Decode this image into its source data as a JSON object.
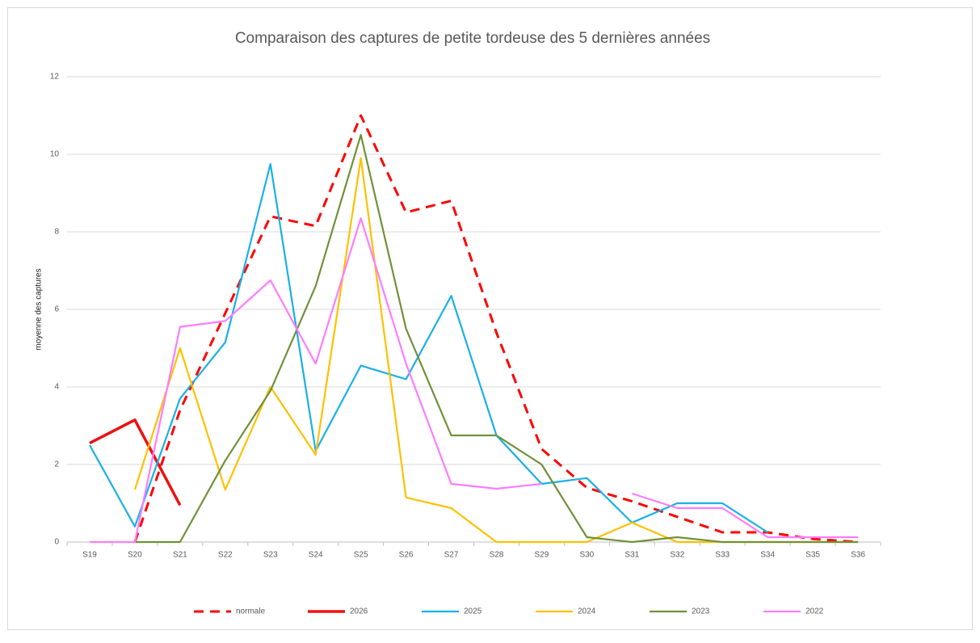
{
  "chart_data": {
    "type": "line",
    "title": "Comparaison des captures de petite tordeuse des 5 dernières années",
    "y_label": "moyenne des captures",
    "categories": [
      "S19",
      "S20",
      "S21",
      "S22",
      "S23",
      "S24",
      "S25",
      "S26",
      "S27",
      "S28",
      "S29",
      "S30",
      "S31",
      "S32",
      "S33",
      "S34",
      "S35",
      "S36"
    ],
    "ylim": [
      0,
      12
    ],
    "yticks": [
      0,
      2,
      4,
      6,
      8,
      10,
      12
    ],
    "grid": true,
    "legend": "bottom",
    "series": [
      {
        "name": "normale",
        "color": "#ff0000",
        "dashed": true,
        "values": [
          null,
          0,
          3.4,
          5.9,
          8.4,
          8.15,
          11,
          8.5,
          8.8,
          5.4,
          2.4,
          1.4,
          1.05,
          0.65,
          0.25,
          0.25,
          0.08,
          0
        ]
      },
      {
        "name": "2026",
        "color": "#ee1111",
        "dashed": false,
        "bold": true,
        "values": [
          2.55,
          3.15,
          0.95,
          null,
          null,
          null,
          null,
          null,
          null,
          null,
          null,
          null,
          null,
          null,
          null,
          null,
          null,
          null
        ]
      },
      {
        "name": "2025",
        "color": "#1ab0e8",
        "dashed": false,
        "values": [
          2.5,
          0.4,
          3.7,
          5.15,
          9.75,
          2.35,
          4.55,
          4.2,
          6.35,
          2.75,
          1.5,
          1.65,
          0.5,
          1,
          1,
          0.25,
          null,
          null
        ]
      },
      {
        "name": "2024",
        "color": "#ffc000",
        "dashed": false,
        "values": [
          null,
          1.35,
          5,
          1.35,
          4,
          2.25,
          9.9,
          1.15,
          0.875,
          0,
          0,
          0,
          0.5,
          0,
          0,
          0,
          0,
          0
        ]
      },
      {
        "name": "2023",
        "color": "#70913a",
        "dashed": false,
        "values": [
          null,
          0,
          0,
          2.1,
          3.9,
          6.6,
          10.5,
          5.5,
          2.75,
          2.75,
          2,
          0.125,
          0,
          0.125,
          0,
          0,
          0,
          0
        ]
      },
      {
        "name": "2022",
        "color": "#ff7cff",
        "dashed": false,
        "values": [
          0,
          0,
          5.55,
          5.7,
          6.75,
          4.6,
          8.35,
          4.6,
          1.5,
          1.375,
          1.5,
          null,
          1.25,
          0.875,
          0.875,
          0.125,
          0.125,
          0.125
        ]
      }
    ]
  }
}
